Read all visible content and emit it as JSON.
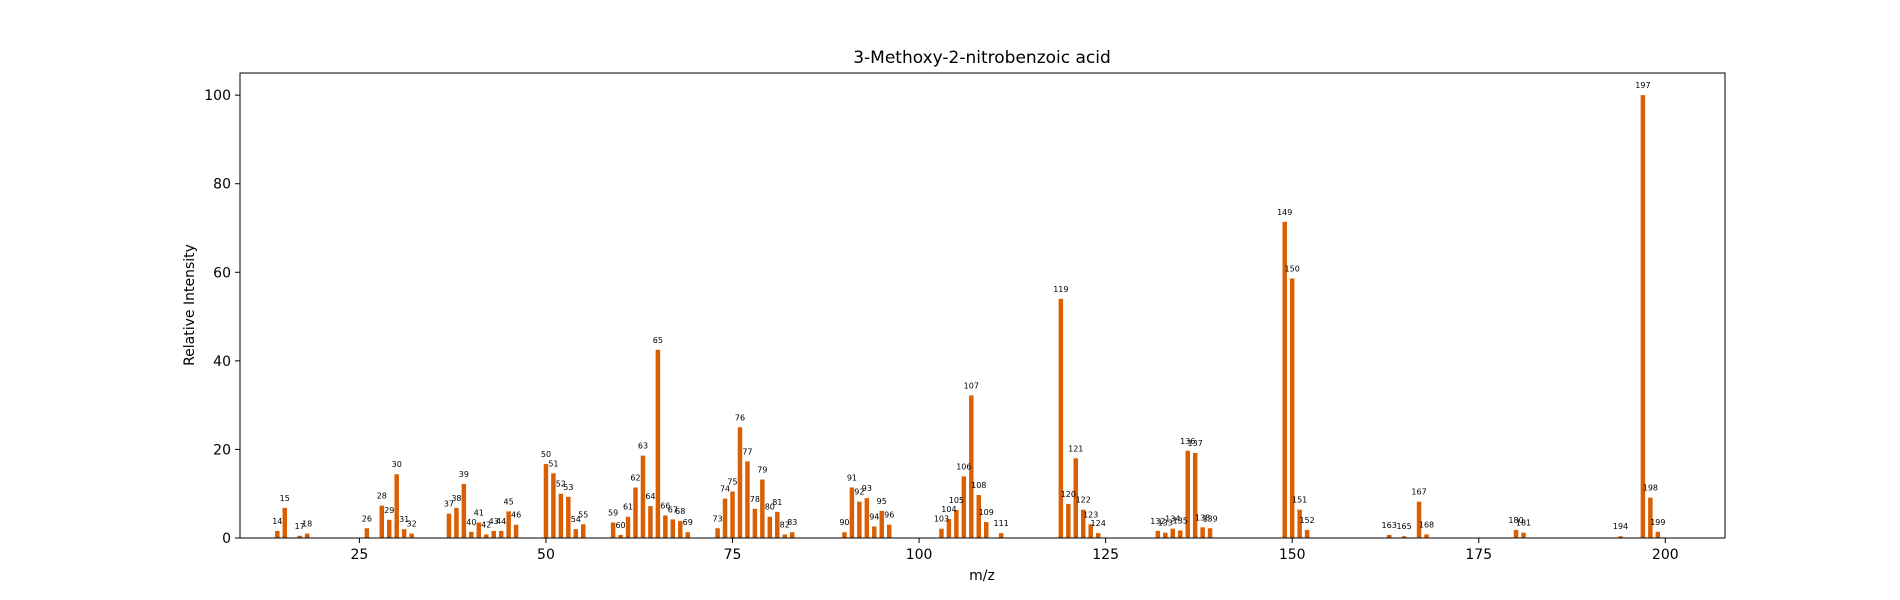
{
  "chart_data": {
    "type": "bar",
    "title": "3-Methoxy-2-nitrobenzoic acid",
    "xlabel": "m/z",
    "ylabel": "Relative Intensity",
    "xlim": [
      9,
      208
    ],
    "ylim": [
      0,
      105
    ],
    "xticks": [
      25,
      50,
      75,
      100,
      125,
      150,
      175,
      200
    ],
    "yticks": [
      0,
      20,
      40,
      60,
      80,
      100
    ],
    "grid": false,
    "bar_color": "#d95f02",
    "x": [
      14,
      15,
      17,
      18,
      26,
      28,
      29,
      30,
      31,
      32,
      37,
      38,
      39,
      40,
      41,
      42,
      43,
      44,
      45,
      46,
      50,
      51,
      52,
      53,
      54,
      55,
      59,
      60,
      61,
      62,
      63,
      64,
      65,
      66,
      67,
      68,
      69,
      73,
      74,
      75,
      76,
      77,
      78,
      79,
      80,
      81,
      82,
      83,
      90,
      91,
      92,
      93,
      94,
      95,
      96,
      103,
      104,
      105,
      106,
      107,
      108,
      109,
      111,
      119,
      120,
      121,
      122,
      123,
      124,
      132,
      133,
      134,
      135,
      136,
      137,
      138,
      139,
      149,
      150,
      151,
      152,
      163,
      165,
      167,
      168,
      180,
      181,
      194,
      197,
      198,
      199
    ],
    "values": [
      1.6,
      6.8,
      0.5,
      1.0,
      2.2,
      7.3,
      4.1,
      14.4,
      2.0,
      1.0,
      5.5,
      6.8,
      12.2,
      1.4,
      3.5,
      0.8,
      1.6,
      1.6,
      6.0,
      3.0,
      16.7,
      14.6,
      10.0,
      9.3,
      2.0,
      3.1,
      3.5,
      0.7,
      4.8,
      11.4,
      18.6,
      7.2,
      42.5,
      5.1,
      4.2,
      3.8,
      1.3,
      2.2,
      8.9,
      10.5,
      25.0,
      17.3,
      6.6,
      13.2,
      4.8,
      5.9,
      0.8,
      1.3,
      1.3,
      11.4,
      8.2,
      9.0,
      2.6,
      6.1,
      3.0,
      2.1,
      4.3,
      6.3,
      13.9,
      32.2,
      9.7,
      3.6,
      1.1,
      54.0,
      7.7,
      18.0,
      6.4,
      3.1,
      1.1,
      1.6,
      1.2,
      2.1,
      1.7,
      19.7,
      19.2,
      2.4,
      2.2,
      71.4,
      58.6,
      6.4,
      1.8,
      0.7,
      0.4,
      8.2,
      0.8,
      1.8,
      1.2,
      0.4,
      100.0,
      9.1,
      1.4
    ]
  }
}
